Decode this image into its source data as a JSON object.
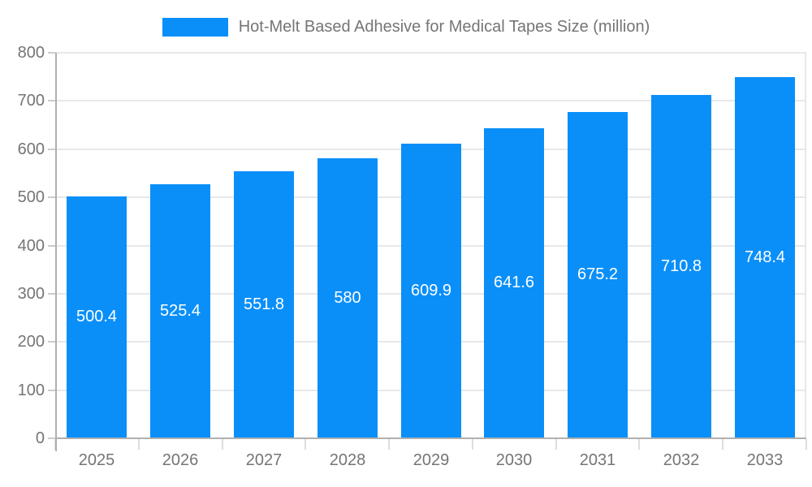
{
  "chart_data": {
    "type": "bar",
    "title": "Hot-Melt Based Adhesive for Medical Tapes Size (million)",
    "categories": [
      "2025",
      "2026",
      "2027",
      "2028",
      "2029",
      "2030",
      "2031",
      "2032",
      "2033"
    ],
    "values": [
      500.4,
      525.4,
      551.8,
      580,
      609.9,
      641.6,
      675.2,
      710.8,
      748.4
    ],
    "value_labels": [
      "500.4",
      "525.4",
      "551.8",
      "580",
      "609.9",
      "641.6",
      "675.2",
      "710.8",
      "748.4"
    ],
    "xlabel": "",
    "ylabel": "",
    "ylim": [
      0,
      800
    ],
    "y_ticks": [
      0,
      100,
      200,
      300,
      400,
      500,
      600,
      700,
      800
    ],
    "grid": true,
    "legend_position": "top-center",
    "colors": {
      "bar": "#0a8ff9",
      "value_label": "#ffffff",
      "axis_text": "#757575",
      "grid_line": "#e8e8e8",
      "axis_line": "#b0b0b0",
      "background": "#ffffff"
    }
  }
}
